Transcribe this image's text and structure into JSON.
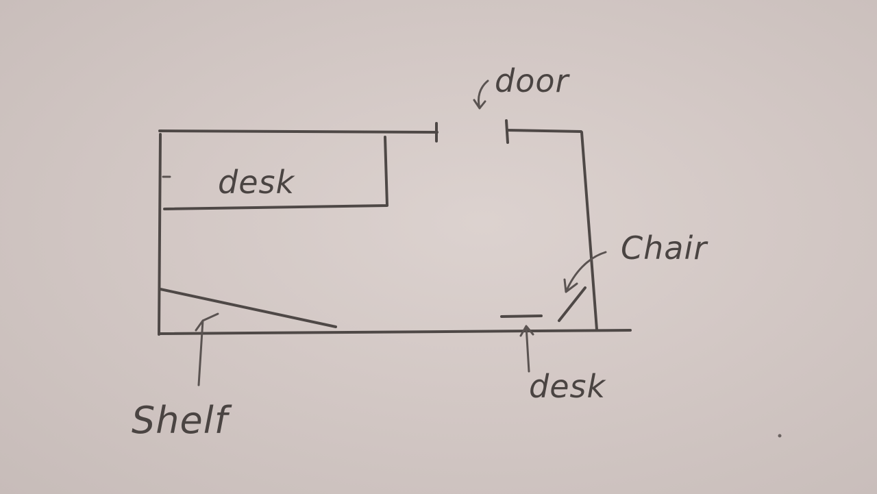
{
  "labels": {
    "door": "door",
    "desk_top": "desk",
    "chair": "Chair",
    "desk_bottom": "desk",
    "shelf": "Shelf"
  },
  "colors": {
    "paper": "#d6ccc9",
    "pencil": "#4e4846"
  }
}
